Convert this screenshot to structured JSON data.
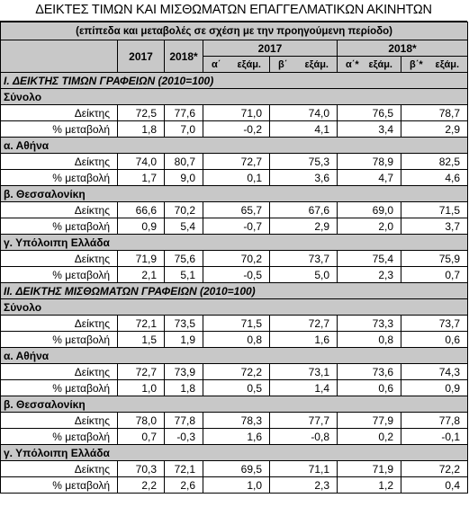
{
  "title": "ΔΕΙΚΤΕΣ ΤΙΜΩΝ ΚΑΙ ΜΙΣΘΩΜΑΤΩΝ ΕΠΑΓΓΕΛΜΑΤΙΚΩΝ ΑΚΙΝΗΤΩΝ",
  "subtitle": "(επίπεδα και μεταβολές σε σχέση με την προηγούμενη περίοδο)",
  "header": {
    "year_2017": "2017",
    "year_2018": "2018*",
    "quarter_a_prefix": "α΄",
    "quarter_b_prefix": "β΄",
    "quarter_a_star_prefix": "α΄*",
    "quarter_b_star_prefix": "β΄*",
    "exam": "εξάμ."
  },
  "sections": [
    {
      "title": "I. ΔΕΙΚΤΗΣ ΤΙΜΩΝ ΓΡΑΦΕΙΩΝ (2010=100)",
      "groups": [
        {
          "name": "Σύνολο",
          "rows": [
            {
              "label": "Δείκτης",
              "values": [
                "72,5",
                "77,6",
                "71,0",
                "74,0",
                "76,5",
                "78,7"
              ]
            },
            {
              "label": "% μεταβολή",
              "values": [
                "1,8",
                "7,0",
                "-0,2",
                "4,1",
                "3,4",
                "2,9"
              ]
            }
          ]
        },
        {
          "name": "α. Αθήνα",
          "rows": [
            {
              "label": "Δείκτης",
              "values": [
                "74,0",
                "80,7",
                "72,7",
                "75,3",
                "78,9",
                "82,5"
              ]
            },
            {
              "label": "% μεταβολή",
              "values": [
                "1,7",
                "9,0",
                "0,1",
                "3,6",
                "4,7",
                "4,6"
              ]
            }
          ]
        },
        {
          "name": "β. Θεσσαλονίκη",
          "rows": [
            {
              "label": "Δείκτης",
              "values": [
                "66,6",
                "70,2",
                "65,7",
                "67,6",
                "69,0",
                "71,5"
              ]
            },
            {
              "label": "% μεταβολή",
              "values": [
                "0,9",
                "5,4",
                "-0,7",
                "2,9",
                "2,0",
                "3,7"
              ]
            }
          ]
        },
        {
          "name": "γ. Υπόλοιπη Ελλάδα",
          "rows": [
            {
              "label": "Δείκτης",
              "values": [
                "71,9",
                "75,6",
                "70,2",
                "73,7",
                "75,4",
                "75,9"
              ]
            },
            {
              "label": "% μεταβολή",
              "values": [
                "2,1",
                "5,1",
                "-0,5",
                "5,0",
                "2,3",
                "0,7"
              ]
            }
          ]
        }
      ]
    },
    {
      "title": "II. ΔΕΙΚΤΗΣ ΜΙΣΘΩΜΑΤΩΝ ΓΡΑΦΕΙΩΝ (2010=100)",
      "groups": [
        {
          "name": "Σύνολο",
          "rows": [
            {
              "label": "Δείκτης",
              "values": [
                "72,1",
                "73,5",
                "71,5",
                "72,7",
                "73,3",
                "73,7"
              ]
            },
            {
              "label": "% μεταβολή",
              "values": [
                "1,5",
                "1,9",
                "0,8",
                "1,6",
                "0,8",
                "0,6"
              ]
            }
          ]
        },
        {
          "name": "α. Αθήνα",
          "rows": [
            {
              "label": "Δείκτης",
              "values": [
                "72,7",
                "73,9",
                "72,2",
                "73,1",
                "73,6",
                "74,3"
              ]
            },
            {
              "label": "% μεταβολή",
              "values": [
                "1,0",
                "1,8",
                "0,5",
                "1,4",
                "0,6",
                "0,9"
              ]
            }
          ]
        },
        {
          "name": "β. Θεσσαλονίκη",
          "rows": [
            {
              "label": "Δείκτης",
              "values": [
                "78,0",
                "77,8",
                "78,3",
                "77,7",
                "77,9",
                "77,8"
              ]
            },
            {
              "label": "% μεταβολή",
              "values": [
                "0,7",
                "-0,3",
                "1,6",
                "-0,8",
                "0,2",
                "-0,1"
              ]
            }
          ]
        },
        {
          "name": "γ. Υπόλοιπη Ελλάδα",
          "rows": [
            {
              "label": "Δείκτης",
              "values": [
                "70,3",
                "72,1",
                "69,5",
                "71,1",
                "71,9",
                "72,2"
              ]
            },
            {
              "label": "% μεταβολή",
              "values": [
                "2,2",
                "2,6",
                "1,0",
                "2,3",
                "1,2",
                "0,4"
              ]
            }
          ]
        }
      ]
    }
  ],
  "colors": {
    "shade": "#c8c8c8",
    "border": "#000000"
  }
}
